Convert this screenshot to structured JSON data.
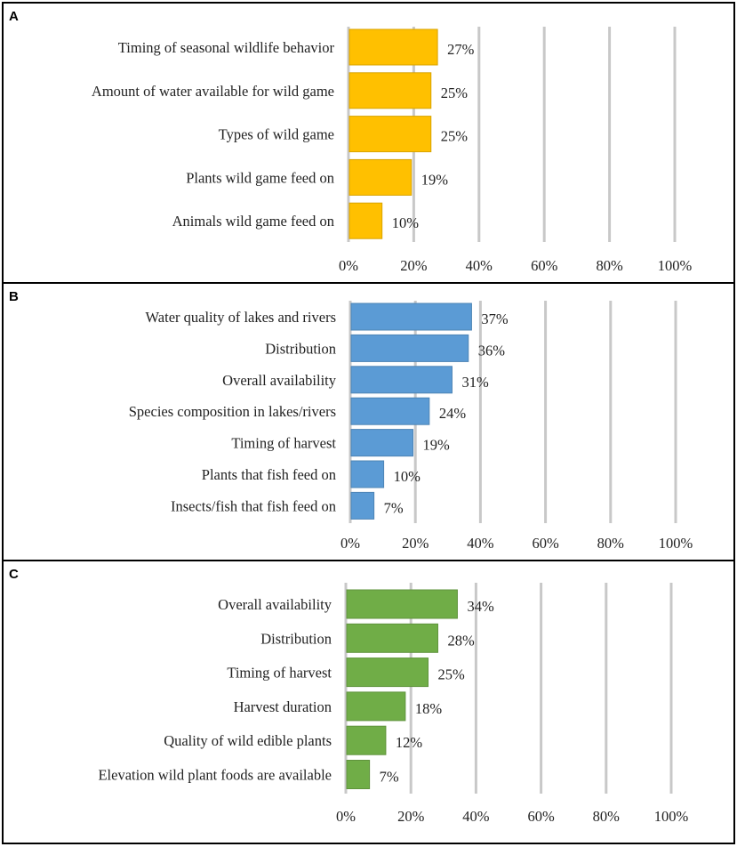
{
  "chart_data": [
    {
      "type": "bar",
      "orientation": "horizontal",
      "panel_label": "A",
      "color": "#FFC000",
      "categories": [
        "Timing of seasonal wildlife behavior",
        "Amount of water available for wild game",
        "Types of wild game",
        "Plants wild game feed on",
        "Animals wild game feed on"
      ],
      "values": [
        27,
        25,
        25,
        19,
        10
      ],
      "value_labels": [
        "27%",
        "25%",
        "25%",
        "19%",
        "10%"
      ],
      "xlim": [
        0,
        100
      ],
      "xticks": [
        "0%",
        "20%",
        "40%",
        "60%",
        "80%",
        "100%"
      ],
      "grid": true
    },
    {
      "type": "bar",
      "orientation": "horizontal",
      "panel_label": "B",
      "color": "#5B9BD5",
      "categories": [
        "Water quality of lakes and rivers",
        "Distribution",
        "Overall availability",
        "Species composition in lakes/rivers",
        "Timing of harvest",
        "Plants that fish feed on",
        "Insects/fish that fish feed on"
      ],
      "values": [
        37,
        36,
        31,
        24,
        19,
        10,
        7
      ],
      "value_labels": [
        "37%",
        "36%",
        "31%",
        "24%",
        "19%",
        "10%",
        "7%"
      ],
      "xlim": [
        0,
        100
      ],
      "xticks": [
        "0%",
        "20%",
        "40%",
        "60%",
        "80%",
        "100%"
      ],
      "grid": true
    },
    {
      "type": "bar",
      "orientation": "horizontal",
      "panel_label": "C",
      "color": "#70AD47",
      "categories": [
        "Overall availability",
        "Distribution",
        "Timing of harvest",
        "Harvest duration",
        "Quality of wild edible plants",
        "Elevation wild plant foods are available"
      ],
      "values": [
        34,
        28,
        25,
        18,
        12,
        7
      ],
      "value_labels": [
        "34%",
        "28%",
        "25%",
        "18%",
        "12%",
        "7%"
      ],
      "xlim": [
        0,
        100
      ],
      "xticks": [
        "0%",
        "20%",
        "40%",
        "60%",
        "80%",
        "100%"
      ],
      "grid": true
    }
  ]
}
